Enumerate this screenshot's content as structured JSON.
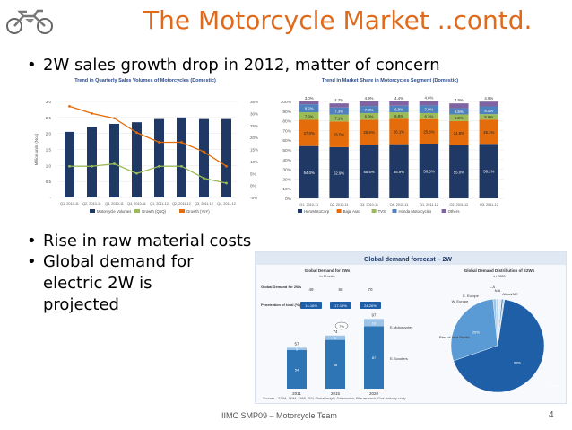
{
  "slide": {
    "title": "The Motorcycle Market ..contd.",
    "bullet1": "2W sales growth drop in 2012, matter of concern",
    "bullet2": "Rise in raw material costs",
    "bullet3_line1": "Global demand for",
    "bullet3_line2": "electric 2W is",
    "bullet3_line3": "projected",
    "footer": "IIMC SMP09 – Motorcycle Team",
    "page_number": "4",
    "bullet_symbol": "•",
    "accent_color": "#e06a1c"
  },
  "chart_data": [
    {
      "type": "bar",
      "title": "Trend in Quarterly Sales Volumes of Motorcycles (Domestic)",
      "ylabel": "Million units (Nos)",
      "categories": [
        "Q1, 2010-11",
        "Q2, 2010-11",
        "Q3, 2010-11",
        "Q4, 2010-11",
        "Q1, 2011-12",
        "Q2, 2011-12",
        "Q3, 2011-12",
        "Q4, 2011-12"
      ],
      "ylim": [
        0,
        3.0
      ],
      "y_ticks": [
        "3.0",
        "2.5",
        "2.0",
        "1.5",
        "1.0",
        "0.5",
        "-"
      ],
      "y2_ticks": [
        "35%",
        "30%",
        "25%",
        "20%",
        "15%",
        "10%",
        "5%",
        "0%",
        "-5%"
      ],
      "y2lim": [
        -5,
        35
      ],
      "series": [
        {
          "name": "Motorcycle Volumes",
          "values": [
            2.05,
            2.2,
            2.3,
            2.35,
            2.45,
            2.5,
            2.45,
            2.45
          ],
          "color": "#1f3864"
        },
        {
          "name": "Growth (QoQ)",
          "values": [
            8,
            8,
            9,
            5,
            8,
            8,
            3,
            1
          ],
          "color": "#9bbb59"
        },
        {
          "name": "Growth (YoY)",
          "values": [
            33,
            30,
            28,
            22,
            18,
            18,
            14,
            8
          ],
          "color": "#e46c0a"
        }
      ]
    },
    {
      "type": "bar",
      "title": "Trend in Market Share in Motorcycles Segment (Domestic)",
      "categories": [
        "Q1, 2010-11",
        "Q2, 2010-11",
        "Q3, 2010-11",
        "Q4, 2010-11",
        "Q1, 2011-12",
        "Q2, 2011-12",
        "Q3, 2011-12"
      ],
      "y_ticks": [
        "100%",
        "90%",
        "80%",
        "70%",
        "60%",
        "50%",
        "40%",
        "30%",
        "20%",
        "10%",
        "0%"
      ],
      "ylim": [
        0,
        100
      ],
      "series": [
        {
          "name": "HeroMotoCorp",
          "values": [
            54.0,
            52.9,
            55.5,
            55.9,
            56.5,
            55.0,
            56.2
          ],
          "labels": [
            "54.0%",
            "52.9%",
            "55.5%",
            "55.9%",
            "56.5%",
            "55.0%",
            "56.2%"
          ],
          "color": "#1f3864"
        },
        {
          "name": "Bajaj Auto",
          "values": [
            27.0,
            26.5,
            25.6,
            26.1,
            25.3,
            24.8,
            25.1
          ],
          "labels": [
            "27.0%",
            "26.5%",
            "25.6%",
            "26.1%",
            "25.3%",
            "24.8%",
            "25.1%"
          ],
          "color": "#e46c0a"
        },
        {
          "name": "TVS",
          "values": [
            7.9,
            7.1,
            6.9,
            6.8,
            6.2,
            6.8,
            5.6
          ],
          "labels": [
            "7.9%",
            "7.1%",
            "6.9%",
            "6.8%",
            "6.2%",
            "6.8%",
            "5.6%"
          ],
          "color": "#9bbb59"
        },
        {
          "name": "Honda Motorcycles",
          "values": [
            8.2,
            7.3,
            7.3,
            6.8,
            7.9,
            6.5,
            8.0
          ],
          "labels": [
            "8.2%",
            "7.3%",
            "7.3%",
            "6.8%",
            "7.9%",
            "6.5%",
            "8.0%"
          ],
          "color": "#4f81bd"
        },
        {
          "name": "Others",
          "values": [
            3.0,
            4.2,
            4.9,
            4.4,
            4.6,
            4.9,
            4.9
          ],
          "labels": [
            "3.0%",
            "4.2%",
            "4.9%",
            "4.4%",
            "4.6%",
            "4.9%",
            "4.9%"
          ],
          "color": "#8064a2"
        }
      ]
    },
    {
      "type": "bar",
      "title": "Global demand forecast – 2W",
      "subtitle_left": "Global Demand for 2Ws",
      "subtitle_left_unit": "In M units",
      "categories": [
        "2011",
        "2015",
        "2020"
      ],
      "totals": [
        "57",
        "74",
        "97"
      ],
      "row1_label": "Global Demand for 2Ws",
      "row1_values": [
        "49",
        "58",
        "70"
      ],
      "row2_label": "Penetration of total (%)",
      "row2_values": [
        "14-16%",
        "17-19%",
        "24-26%"
      ],
      "cagr_label": "7%",
      "series": [
        {
          "name": "E-Scooters",
          "values": [
            54,
            68,
            87
          ],
          "labels": [
            "54",
            "68",
            "87"
          ],
          "color": "#2e75b6"
        },
        {
          "name": "E-Motorcycles",
          "values": [
            3,
            6,
            10
          ],
          "labels": [
            "3",
            "6",
            "10"
          ],
          "color": "#9dc3e6"
        }
      ],
      "legend": [
        "E-Motorcycles",
        "E-Scooters"
      ],
      "source": "Sources – SIAM, JAMA, FAMI, AISI, Global Insight, Datamonitor, Pike research, Govt. industry study"
    },
    {
      "type": "pie",
      "title": "Global Demand Distribution of E2Ws",
      "subtitle": "In 2020",
      "slices": [
        {
          "name": "China",
          "value": 68,
          "label": "68%",
          "color": "#1f5fa8"
        },
        {
          "name": "Rest of Asia Pacific",
          "value": 29,
          "label": "29%",
          "color": "#5b9bd5"
        },
        {
          "name": "W. Europe",
          "value": 1,
          "color": "#9dc3e6"
        },
        {
          "name": "E. Europe",
          "value": 1,
          "color": "#bdd7ee"
        },
        {
          "name": "N.A",
          "value": 1,
          "color": "#deebf7"
        },
        {
          "name": "L.A",
          "value": 0.5,
          "color": "#2e75b6"
        },
        {
          "name": "Africa/ME",
          "value": 0.5,
          "color": "#c6d9f1"
        }
      ]
    }
  ]
}
